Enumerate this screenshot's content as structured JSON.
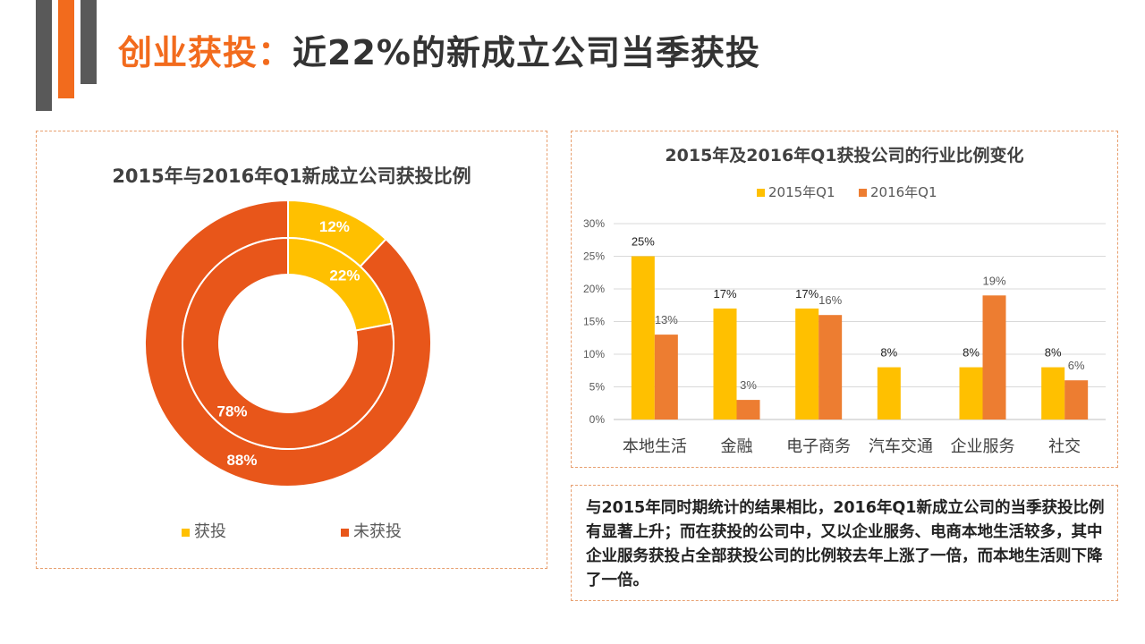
{
  "header": {
    "title_highlight": "创业获投：",
    "title_rest": "近22%的新成立公司当季获投"
  },
  "summary": {
    "text": "与2015年同时期统计的结果相比，2016年Q1新成立公司的当季获投比例有显著上升；而在获投的公司中，又以企业服务、电商本地生活较多，其中企业服务获投占全部获投公司的比例较去年上涨了一倍，而本地生活则下降了一倍。"
  },
  "colors": {
    "accent": "#F26B1D",
    "dark_bar": "#595959",
    "funded": "#FFC000",
    "not_funded": "#E8561A",
    "series_2015": "#FFC000",
    "series_2016": "#ED7D31",
    "border": "#E8A070"
  },
  "chart_data": [
    {
      "type": "pie",
      "subtype": "doughnut",
      "title": "2015年与2016年Q1新成立公司获投比例",
      "legend": [
        "获投",
        "未获投"
      ],
      "legend_position": "bottom",
      "rings": [
        {
          "ring": "outer",
          "values": [
            12,
            88
          ],
          "labels": [
            "12%",
            "88%"
          ]
        },
        {
          "ring": "inner",
          "values": [
            22,
            78
          ],
          "labels": [
            "22%",
            "78%"
          ]
        }
      ]
    },
    {
      "type": "bar",
      "title": "2015年及2016年Q1获投公司的行业比例变化",
      "categories": [
        "本地生活",
        "金融",
        "电子商务",
        "汽车交通",
        "企业服务",
        "社交"
      ],
      "series": [
        {
          "name": "2015年Q1",
          "values": [
            25,
            17,
            17,
            8,
            8,
            8
          ],
          "labels": [
            "25%",
            "17%",
            "17%",
            "8%",
            "8%",
            "8%"
          ]
        },
        {
          "name": "2016年Q1",
          "values": [
            13,
            3,
            16,
            null,
            19,
            6
          ],
          "labels": [
            "13%",
            "3%",
            "16%",
            "",
            "19%",
            "6%"
          ]
        }
      ],
      "ylim": [
        0,
        30
      ],
      "yticks": [
        "0%",
        "5%",
        "10%",
        "15%",
        "20%",
        "25%",
        "30%"
      ],
      "legend_position": "top",
      "grid": true
    }
  ]
}
